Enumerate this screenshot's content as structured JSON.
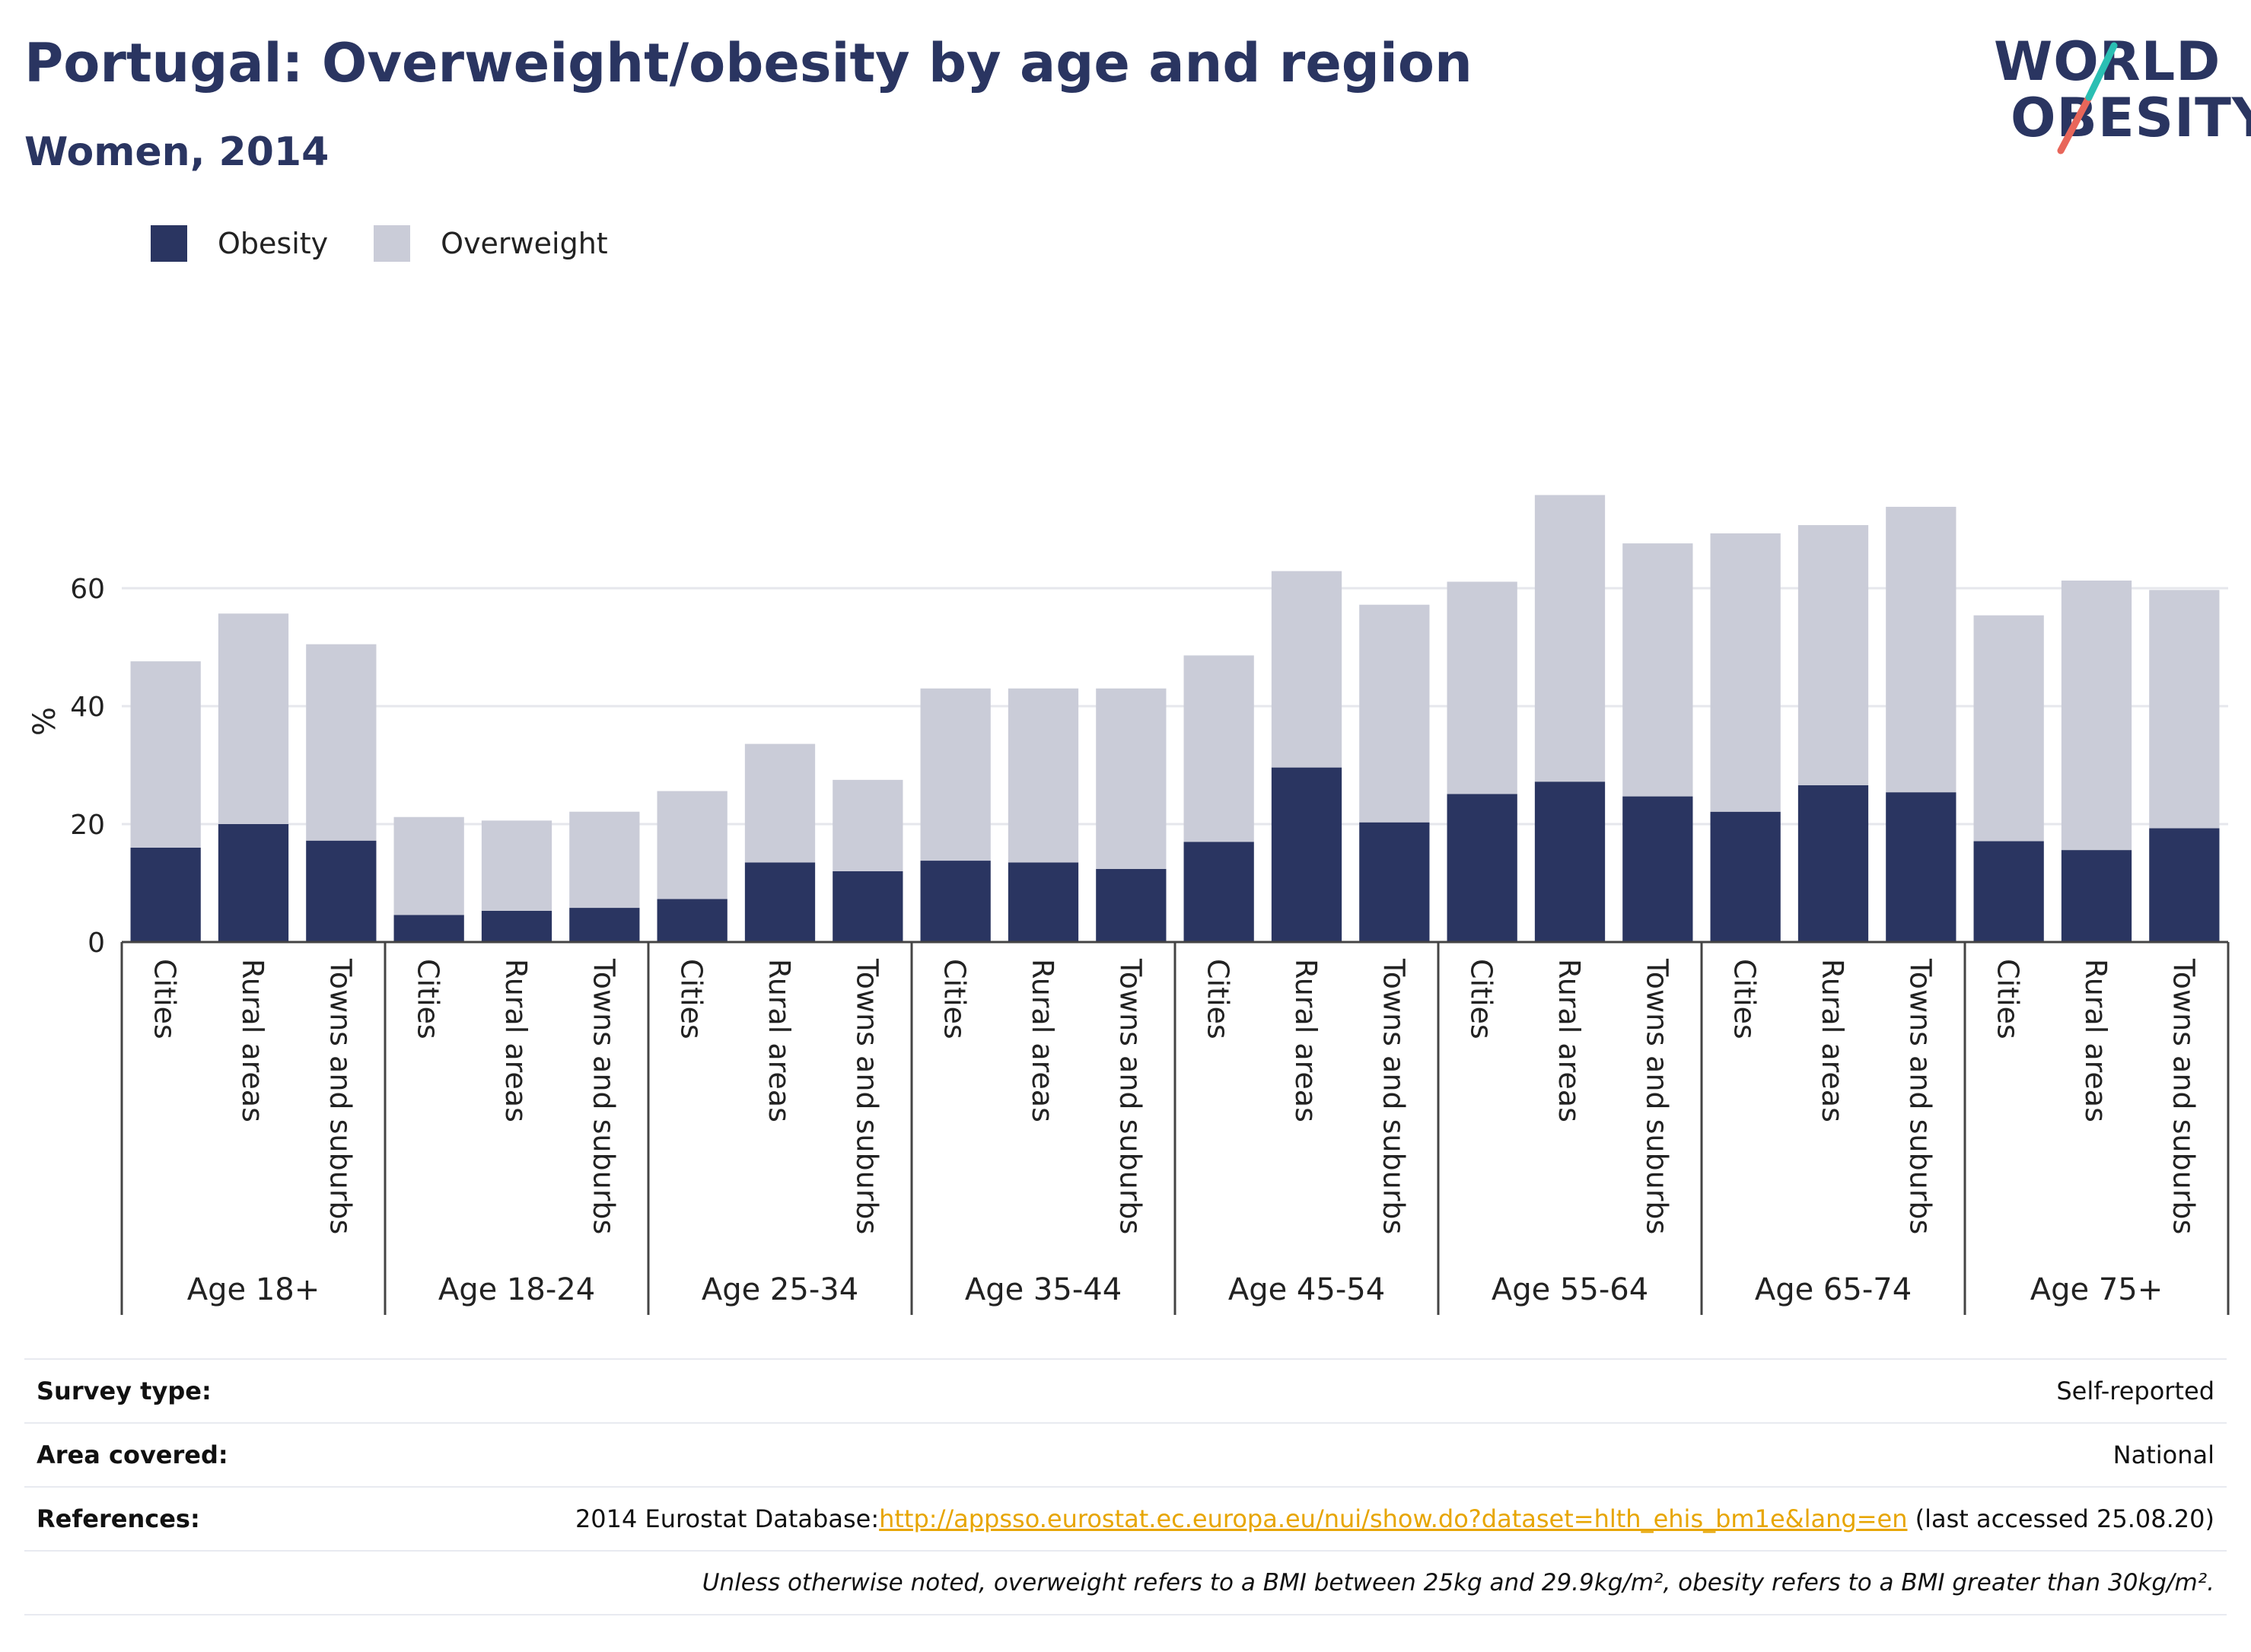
{
  "header": {
    "title": "Portugal: Overweight/obesity by age and region",
    "subtitle": "Women, 2014"
  },
  "logo": {
    "line1": "WORLD",
    "line2": "OBESITY",
    "accent_colors": [
      "#2bbfb3",
      "#e8665a"
    ]
  },
  "colors": {
    "obesity": "#2a3561",
    "overweight": "#caccd8",
    "axis": "#444444",
    "grid": "#e6e7ec"
  },
  "chart_data": {
    "type": "bar",
    "stacked": true,
    "ylabel": "%",
    "ylim": [
      0,
      80
    ],
    "yticks": [
      0,
      20,
      40,
      60
    ],
    "grid": true,
    "legend_position": "top-left",
    "groups": [
      {
        "label": "Age 18+",
        "categories": [
          "Cities",
          "Rural areas",
          "Towns and suburbs"
        ]
      },
      {
        "label": "Age 18-24",
        "categories": [
          "Cities",
          "Rural areas",
          "Towns and suburbs"
        ]
      },
      {
        "label": "Age 25-34",
        "categories": [
          "Cities",
          "Rural areas",
          "Towns and suburbs"
        ]
      },
      {
        "label": "Age 35-44",
        "categories": [
          "Cities",
          "Rural areas",
          "Towns and suburbs"
        ]
      },
      {
        "label": "Age 45-54",
        "categories": [
          "Cities",
          "Rural areas",
          "Towns and suburbs"
        ]
      },
      {
        "label": "Age 55-64",
        "categories": [
          "Cities",
          "Rural areas",
          "Towns and suburbs"
        ]
      },
      {
        "label": "Age 65-74",
        "categories": [
          "Cities",
          "Rural areas",
          "Towns and suburbs"
        ]
      },
      {
        "label": "Age 75+",
        "categories": [
          "Cities",
          "Rural areas",
          "Towns and suburbs"
        ]
      }
    ],
    "series": [
      {
        "name": "Obesity",
        "values": [
          16.0,
          20.0,
          17.2,
          4.6,
          5.3,
          5.8,
          7.3,
          13.5,
          12.0,
          13.8,
          13.5,
          12.4,
          17.0,
          29.6,
          20.3,
          25.1,
          27.2,
          24.7,
          22.1,
          26.6,
          25.4,
          17.1,
          15.6,
          19.3
        ]
      },
      {
        "name": "Overweight",
        "values": [
          31.6,
          35.7,
          33.3,
          16.6,
          15.3,
          16.3,
          18.3,
          20.1,
          15.5,
          29.2,
          29.5,
          30.6,
          31.6,
          33.3,
          36.9,
          36.0,
          48.6,
          42.9,
          47.2,
          44.1,
          48.4,
          38.3,
          45.7,
          40.4
        ]
      }
    ]
  },
  "legend": {
    "items": [
      {
        "name": "Obesity"
      },
      {
        "name": "Overweight"
      }
    ]
  },
  "footer": {
    "survey_label": "Survey type:",
    "survey_value": "Self-reported",
    "area_label": "Area covered:",
    "area_value": "National",
    "ref_label": "References:",
    "ref_prefix": "2014 Eurostat Database:",
    "ref_link": "http://appsso.eurostat.ec.europa.eu/nui/show.do?dataset=hlth_ehis_bm1e&lang=en",
    "ref_suffix": " (last accessed 25.08.20)",
    "note": "Unless otherwise noted, overweight refers to a BMI between 25kg and 29.9kg/m², obesity refers to a BMI greater than 30kg/m²."
  }
}
